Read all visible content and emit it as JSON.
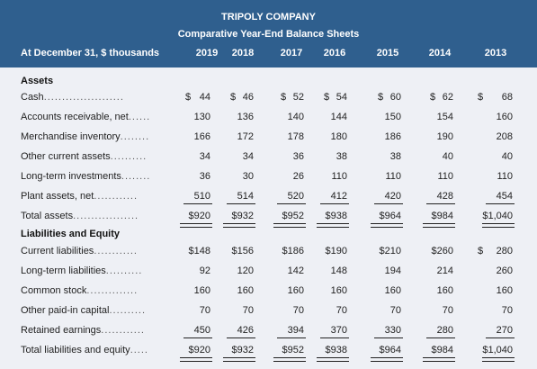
{
  "header": {
    "company": "TRIPOLY COMPANY",
    "subtitle": "Comparative Year-End Balance Sheets",
    "label": "At December 31, $ thousands",
    "years": [
      "2019",
      "2018",
      "2017",
      "2016",
      "2015",
      "2014",
      "2013"
    ]
  },
  "assets": {
    "title": "Assets",
    "rows": [
      {
        "label": "Cash",
        "dots": "......................",
        "values": [
          "44",
          "46",
          "52",
          "54",
          "60",
          "62",
          "68"
        ],
        "dollar": true
      },
      {
        "label": "Accounts receivable, net",
        "dots": "......",
        "values": [
          "130",
          "136",
          "140",
          "144",
          "150",
          "154",
          "160"
        ]
      },
      {
        "label": "Merchandise inventory",
        "dots": "........",
        "values": [
          "166",
          "172",
          "178",
          "180",
          "186",
          "190",
          "208"
        ]
      },
      {
        "label": "Other current assets",
        "dots": "..........",
        "values": [
          "34",
          "34",
          "36",
          "38",
          "38",
          "40",
          "40"
        ]
      },
      {
        "label": "Long-term investments",
        "dots": "........",
        "values": [
          "36",
          "30",
          "26",
          "110",
          "110",
          "110",
          "110"
        ]
      },
      {
        "label": "Plant assets, net",
        "dots": "............",
        "values": [
          "510",
          "514",
          "520",
          "412",
          "420",
          "428",
          "454"
        ]
      },
      {
        "label": "Total assets",
        "dots": "..................",
        "values": [
          "$920",
          "$932",
          "$952",
          "$938",
          "$964",
          "$984",
          "$1,040"
        ],
        "total": true
      }
    ]
  },
  "liabilities": {
    "title": "Liabilities and Equity",
    "rows": [
      {
        "label": "Current liabilities",
        "dots": "............",
        "values": [
          "$148",
          "$156",
          "$186",
          "$190",
          "$210",
          "$260",
          "280"
        ],
        "dollar_last": true
      },
      {
        "label": "Long-term liabilities",
        "dots": "..........",
        "values": [
          "92",
          "120",
          "142",
          "148",
          "194",
          "214",
          "260"
        ]
      },
      {
        "label": "Common stock",
        "dots": "..............",
        "values": [
          "160",
          "160",
          "160",
          "160",
          "160",
          "160",
          "160"
        ]
      },
      {
        "label": "Other paid-in capital",
        "dots": "..........",
        "values": [
          "70",
          "70",
          "70",
          "70",
          "70",
          "70",
          "70"
        ]
      },
      {
        "label": "Retained earnings",
        "dots": "............",
        "values": [
          "450",
          "426",
          "394",
          "370",
          "330",
          "280",
          "270"
        ]
      },
      {
        "label": "Total liabilities and equity",
        "dots": ".....",
        "values": [
          "$920",
          "$932",
          "$952",
          "$938",
          "$964",
          "$984",
          "$1,040"
        ],
        "total": true
      }
    ]
  },
  "colors": {
    "header_bg": "#2f5f8e",
    "body_bg": "#eef0f5"
  },
  "currency_symbol": "$"
}
